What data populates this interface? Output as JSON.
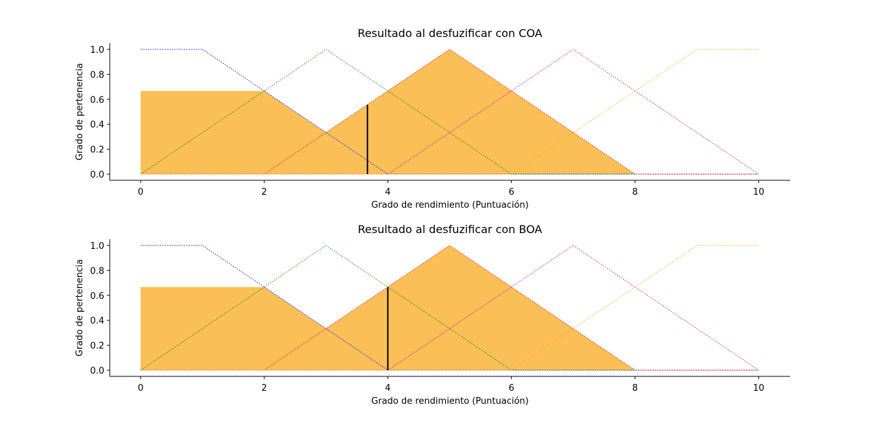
{
  "chart_data": [
    {
      "type": "area",
      "title": "Resultado al desfuzificar con COA",
      "xlabel": "Grado de rendimiento (Puntuación)",
      "ylabel": "Grado de pertenencia",
      "xlim": [
        0,
        10
      ],
      "ylim": [
        0,
        1
      ],
      "xticks": [
        "0",
        "2",
        "4",
        "6",
        "8",
        "10"
      ],
      "yticks": [
        "0.0",
        "0.2",
        "0.4",
        "0.6",
        "0.8",
        "1.0"
      ],
      "grid": false,
      "membership_functions": [
        {
          "color": "#0000ff",
          "x": [
            0,
            1,
            4,
            10
          ],
          "y": [
            1,
            1,
            0,
            0
          ]
        },
        {
          "color": "#008000",
          "x": [
            0,
            3,
            6,
            10
          ],
          "y": [
            0,
            1,
            0,
            0
          ]
        },
        {
          "color": "#ff0000",
          "x": [
            0,
            2,
            5,
            8,
            10
          ],
          "y": [
            0,
            0,
            1,
            0,
            0
          ]
        },
        {
          "color": "#bf00bf",
          "x": [
            0,
            4,
            7,
            10
          ],
          "y": [
            0,
            0,
            1,
            0
          ]
        },
        {
          "color": "#ffa500",
          "x": [
            0,
            6,
            9,
            10
          ],
          "y": [
            0,
            0,
            1,
            1
          ]
        }
      ],
      "aggregated": {
        "color": "#fbbc4e",
        "x": [
          0,
          0,
          2,
          3,
          4,
          5,
          8
        ],
        "y": [
          0,
          0.667,
          0.667,
          0.333,
          0.667,
          1,
          0
        ]
      },
      "defuzzified": {
        "x": 3.67,
        "y": 0.556
      }
    },
    {
      "type": "area",
      "title": "Resultado al desfuzificar con BOA",
      "xlabel": "Grado de rendimiento (Puntuación)",
      "ylabel": "Grado de pertenencia",
      "xlim": [
        0,
        10
      ],
      "ylim": [
        0,
        1
      ],
      "xticks": [
        "0",
        "2",
        "4",
        "6",
        "8",
        "10"
      ],
      "yticks": [
        "0.0",
        "0.2",
        "0.4",
        "0.6",
        "0.8",
        "1.0"
      ],
      "grid": false,
      "membership_functions": [
        {
          "color": "#0000ff",
          "x": [
            0,
            1,
            4,
            10
          ],
          "y": [
            1,
            1,
            0,
            0
          ]
        },
        {
          "color": "#008000",
          "x": [
            0,
            3,
            6,
            10
          ],
          "y": [
            0,
            1,
            0,
            0
          ]
        },
        {
          "color": "#ff0000",
          "x": [
            0,
            2,
            5,
            8,
            10
          ],
          "y": [
            0,
            0,
            1,
            0,
            0
          ]
        },
        {
          "color": "#bf00bf",
          "x": [
            0,
            4,
            7,
            10
          ],
          "y": [
            0,
            0,
            1,
            0
          ]
        },
        {
          "color": "#ffa500",
          "x": [
            0,
            6,
            9,
            10
          ],
          "y": [
            0,
            0,
            1,
            1
          ]
        }
      ],
      "aggregated": {
        "color": "#fbbc4e",
        "x": [
          0,
          0,
          2,
          3,
          4,
          5,
          8
        ],
        "y": [
          0,
          0.667,
          0.667,
          0.333,
          0.667,
          1,
          0
        ]
      },
      "defuzzified": {
        "x": 4.0,
        "y": 0.667
      }
    }
  ]
}
